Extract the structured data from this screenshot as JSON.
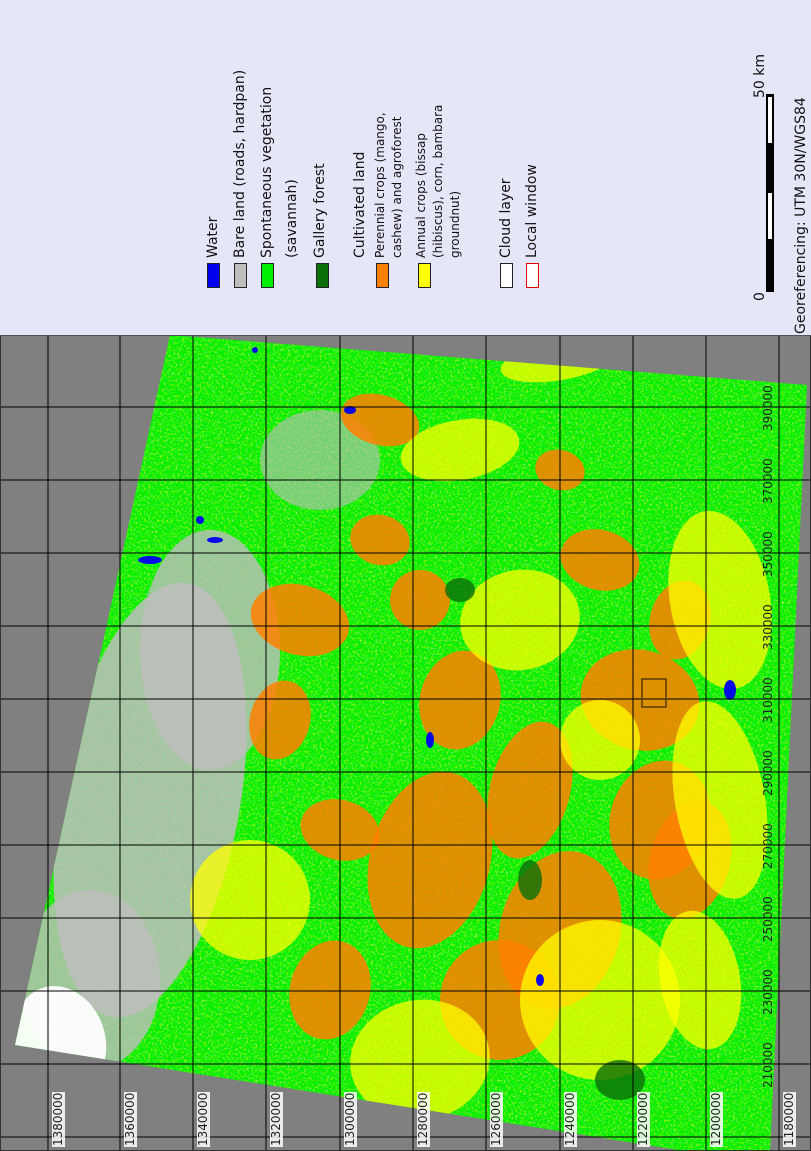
{
  "legend": {
    "items": [
      {
        "label": "Water",
        "color": "#0000ee"
      },
      {
        "label": "Bare land (roads, hardpan)",
        "color": "#bebebe"
      },
      {
        "label": "Spontaneous vegetation",
        "label2": "(savannah)",
        "color": "#00ee00"
      },
      {
        "label": "Gallery forest",
        "color": "#0a6e0a"
      }
    ],
    "cultivated_heading": "Cultivated land",
    "cultivated_items": [
      {
        "lines": [
          "Perennial crops (mango,",
          "cashew) and agroforest"
        ],
        "color": "#ff8000"
      },
      {
        "lines": [
          "Annual crops (bissap",
          "(hibiscus), corn, bambara",
          "groundnut)"
        ],
        "color": "#ffff00"
      }
    ],
    "other_items": [
      {
        "label": "Cloud layer",
        "color": "#ffffff",
        "border": "#222222"
      },
      {
        "label": "Local window",
        "color": "#ffffff",
        "border": "#e00000"
      }
    ]
  },
  "scale_bar": {
    "start_label": "0",
    "end_label": "50 km"
  },
  "georeferencing": "Georeferencing: UTM 30N/WGS84",
  "northing_labels": [
    "1380000",
    "1360000",
    "1340000",
    "1320000",
    "1300000",
    "1280000",
    "1260000",
    "1240000",
    "1220000",
    "1200000",
    "1180000"
  ],
  "easting_labels": [
    "210000",
    "230000",
    "250000",
    "270000",
    "290000",
    "310000",
    "330000",
    "350000",
    "370000",
    "390000"
  ],
  "colors": {
    "background": "#808080",
    "grid": "#000000",
    "water": "#0000ee",
    "bare": "#bebebe",
    "savannah": "#00ee00",
    "gallery": "#0a6e0a",
    "perennial": "#ff8000",
    "annual": "#ffff00",
    "cloud": "#ffffff",
    "local_window": "#e00000"
  }
}
